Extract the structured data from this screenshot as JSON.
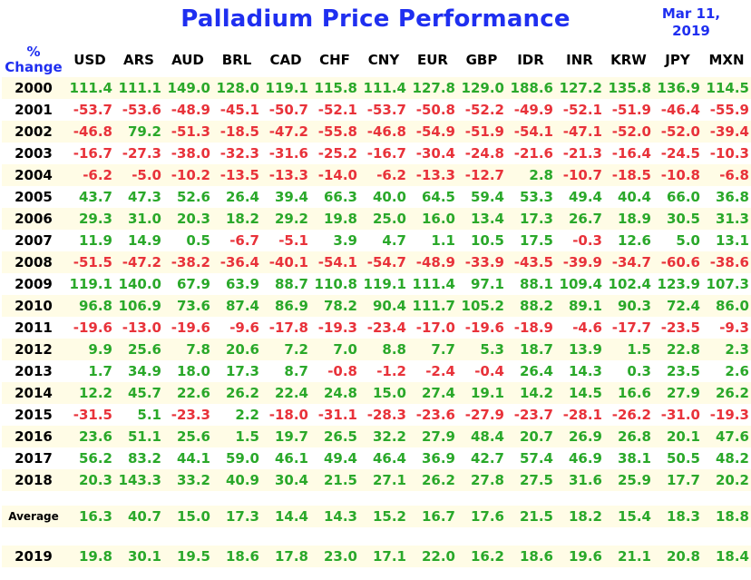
{
  "title": "Palladium Price Performance",
  "date_line1": "Mar 11,",
  "date_line2": "2019",
  "header_label_line1": "%",
  "header_label_line2": "Change",
  "colors": {
    "title": "#1f2ff0",
    "positive": "#2aa82a",
    "negative": "#e8323a",
    "stripe": "#fffce6"
  },
  "chart_data": {
    "type": "table",
    "title": "Palladium Price Performance",
    "columns": [
      "USD",
      "ARS",
      "AUD",
      "BRL",
      "CAD",
      "CHF",
      "CNY",
      "EUR",
      "GBP",
      "IDR",
      "INR",
      "KRW",
      "JPY",
      "MXN"
    ],
    "rows": [
      {
        "label": "2000",
        "values": [
          "111.4",
          "111.1",
          "149.0",
          "128.0",
          "119.1",
          "115.8",
          "111.4",
          "127.8",
          "129.0",
          "188.6",
          "127.2",
          "135.8",
          "136.9",
          "114.5"
        ]
      },
      {
        "label": "2001",
        "values": [
          "-53.7",
          "-53.6",
          "-48.9",
          "-45.1",
          "-50.7",
          "-52.1",
          "-53.7",
          "-50.8",
          "-52.2",
          "-49.9",
          "-52.1",
          "-51.9",
          "-46.4",
          "-55.9"
        ]
      },
      {
        "label": "2002",
        "values": [
          "-46.8",
          "79.2",
          "-51.3",
          "-18.5",
          "-47.2",
          "-55.8",
          "-46.8",
          "-54.9",
          "-51.9",
          "-54.1",
          "-47.1",
          "-52.0",
          "-52.0",
          "-39.4"
        ]
      },
      {
        "label": "2003",
        "values": [
          "-16.7",
          "-27.3",
          "-38.0",
          "-32.3",
          "-31.6",
          "-25.2",
          "-16.7",
          "-30.4",
          "-24.8",
          "-21.6",
          "-21.3",
          "-16.4",
          "-24.5",
          "-10.3"
        ]
      },
      {
        "label": "2004",
        "values": [
          "-6.2",
          "-5.0",
          "-10.2",
          "-13.5",
          "-13.3",
          "-14.0",
          "-6.2",
          "-13.3",
          "-12.7",
          "2.8",
          "-10.7",
          "-18.5",
          "-10.8",
          "-6.8"
        ]
      },
      {
        "label": "2005",
        "values": [
          "43.7",
          "47.3",
          "52.6",
          "26.4",
          "39.4",
          "66.3",
          "40.0",
          "64.5",
          "59.4",
          "53.3",
          "49.4",
          "40.4",
          "66.0",
          "36.8"
        ]
      },
      {
        "label": "2006",
        "values": [
          "29.3",
          "31.0",
          "20.3",
          "18.2",
          "29.2",
          "19.8",
          "25.0",
          "16.0",
          "13.4",
          "17.3",
          "26.7",
          "18.9",
          "30.5",
          "31.3"
        ]
      },
      {
        "label": "2007",
        "values": [
          "11.9",
          "14.9",
          "0.5",
          "-6.7",
          "-5.1",
          "3.9",
          "4.7",
          "1.1",
          "10.5",
          "17.5",
          "-0.3",
          "12.6",
          "5.0",
          "13.1"
        ]
      },
      {
        "label": "2008",
        "values": [
          "-51.5",
          "-47.2",
          "-38.2",
          "-36.4",
          "-40.1",
          "-54.1",
          "-54.7",
          "-48.9",
          "-33.9",
          "-43.5",
          "-39.9",
          "-34.7",
          "-60.6",
          "-38.6"
        ]
      },
      {
        "label": "2009",
        "values": [
          "119.1",
          "140.0",
          "67.9",
          "63.9",
          "88.7",
          "110.8",
          "119.1",
          "111.4",
          "97.1",
          "88.1",
          "109.4",
          "102.4",
          "123.9",
          "107.3"
        ]
      },
      {
        "label": "2010",
        "values": [
          "96.8",
          "106.9",
          "73.6",
          "87.4",
          "86.9",
          "78.2",
          "90.4",
          "111.7",
          "105.2",
          "88.2",
          "89.1",
          "90.3",
          "72.4",
          "86.0"
        ]
      },
      {
        "label": "2011",
        "values": [
          "-19.6",
          "-13.0",
          "-19.6",
          "-9.6",
          "-17.8",
          "-19.3",
          "-23.4",
          "-17.0",
          "-19.6",
          "-18.9",
          "-4.6",
          "-17.7",
          "-23.5",
          "-9.3"
        ]
      },
      {
        "label": "2012",
        "values": [
          "9.9",
          "25.6",
          "7.8",
          "20.6",
          "7.2",
          "7.0",
          "8.8",
          "7.7",
          "5.3",
          "18.7",
          "13.9",
          "1.5",
          "22.8",
          "2.3"
        ]
      },
      {
        "label": "2013",
        "values": [
          "1.7",
          "34.9",
          "18.0",
          "17.3",
          "8.7",
          "-0.8",
          "-1.2",
          "-2.4",
          "-0.4",
          "26.4",
          "14.3",
          "0.3",
          "23.5",
          "2.6"
        ]
      },
      {
        "label": "2014",
        "values": [
          "12.2",
          "45.7",
          "22.6",
          "26.2",
          "22.4",
          "24.8",
          "15.0",
          "27.4",
          "19.1",
          "14.2",
          "14.5",
          "16.6",
          "27.9",
          "26.2"
        ]
      },
      {
        "label": "2015",
        "values": [
          "-31.5",
          "5.1",
          "-23.3",
          "2.2",
          "-18.0",
          "-31.1",
          "-28.3",
          "-23.6",
          "-27.9",
          "-23.7",
          "-28.1",
          "-26.2",
          "-31.0",
          "-19.3"
        ]
      },
      {
        "label": "2016",
        "values": [
          "23.6",
          "51.1",
          "25.6",
          "1.5",
          "19.7",
          "26.5",
          "32.2",
          "27.9",
          "48.4",
          "20.7",
          "26.9",
          "26.8",
          "20.1",
          "47.6"
        ]
      },
      {
        "label": "2017",
        "values": [
          "56.2",
          "83.2",
          "44.1",
          "59.0",
          "46.1",
          "49.4",
          "46.4",
          "36.9",
          "42.7",
          "57.4",
          "46.9",
          "38.1",
          "50.5",
          "48.2"
        ]
      },
      {
        "label": "2018",
        "values": [
          "20.3",
          "143.3",
          "33.2",
          "40.9",
          "30.4",
          "21.5",
          "27.1",
          "26.2",
          "27.8",
          "27.5",
          "31.6",
          "25.9",
          "17.7",
          "20.2"
        ]
      }
    ],
    "average": {
      "label": "Average",
      "values": [
        "16.3",
        "40.7",
        "15.0",
        "17.3",
        "14.4",
        "14.3",
        "15.2",
        "16.7",
        "17.6",
        "21.5",
        "18.2",
        "15.4",
        "18.3",
        "18.8"
      ]
    },
    "current": {
      "label": "2019",
      "values": [
        "19.8",
        "30.1",
        "19.5",
        "18.6",
        "17.8",
        "23.0",
        "17.1",
        "22.0",
        "16.2",
        "18.6",
        "19.6",
        "21.1",
        "20.8",
        "18.4"
      ]
    }
  }
}
